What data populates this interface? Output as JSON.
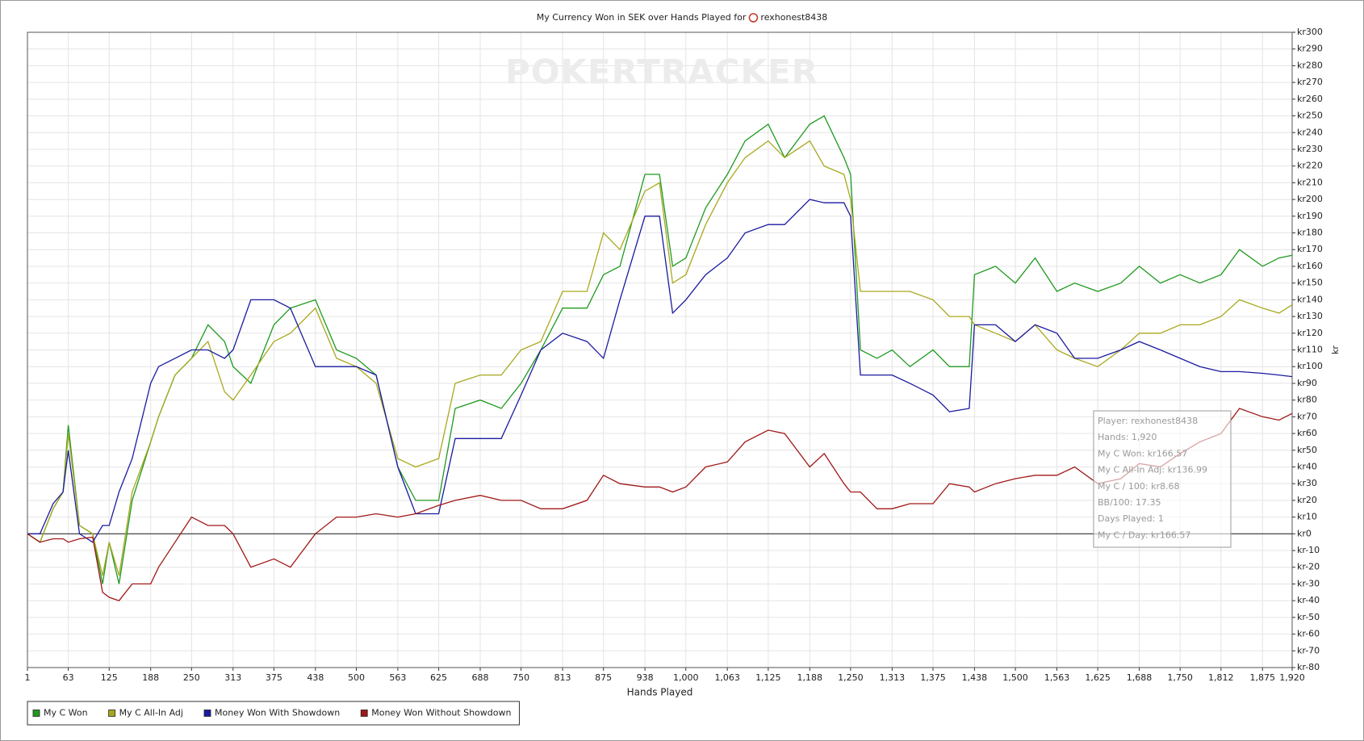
{
  "chart_data": {
    "type": "line",
    "title": "My Currency Won in SEK over Hands Played for",
    "player": "rexhonest8438",
    "watermark": "POKERTRACKER",
    "x_label": "Hands Played",
    "y_label": "kr",
    "xlim": [
      1,
      1920
    ],
    "ylim": [
      -80,
      300
    ],
    "grid": true,
    "legend": "bottom-left",
    "xticks": [
      1,
      63,
      125,
      188,
      250,
      313,
      375,
      438,
      500,
      563,
      625,
      688,
      750,
      813,
      875,
      938,
      {
        "value": 1000,
        "label": "1,000"
      },
      {
        "value": 1063,
        "label": "1,063"
      },
      {
        "value": 1125,
        "label": "1,125"
      },
      {
        "value": 1188,
        "label": "1,188"
      },
      {
        "value": 1250,
        "label": "1,250"
      },
      {
        "value": 1313,
        "label": "1,313"
      },
      {
        "value": 1375,
        "label": "1,375"
      },
      {
        "value": 1438,
        "label": "1,438"
      },
      {
        "value": 1500,
        "label": "1,500"
      },
      {
        "value": 1563,
        "label": "1,563"
      },
      {
        "value": 1625,
        "label": "1,625"
      },
      {
        "value": 1688,
        "label": "1,688"
      },
      {
        "value": 1750,
        "label": "1,750"
      },
      {
        "value": 1812,
        "label": "1,812"
      },
      {
        "value": 1875,
        "label": "1,875"
      },
      {
        "value": 1920,
        "label": "1,920"
      }
    ],
    "yticks": [
      {
        "value": 300,
        "label": "kr300"
      },
      {
        "value": 290,
        "label": "kr290"
      },
      {
        "value": 280,
        "label": "kr280"
      },
      {
        "value": 270,
        "label": "kr270"
      },
      {
        "value": 260,
        "label": "kr260"
      },
      {
        "value": 250,
        "label": "kr250"
      },
      {
        "value": 240,
        "label": "kr240"
      },
      {
        "value": 230,
        "label": "kr230"
      },
      {
        "value": 220,
        "label": "kr220"
      },
      {
        "value": 210,
        "label": "kr210"
      },
      {
        "value": 200,
        "label": "kr200"
      },
      {
        "value": 190,
        "label": "kr190"
      },
      {
        "value": 180,
        "label": "kr180"
      },
      {
        "value": 170,
        "label": "kr170"
      },
      {
        "value": 160,
        "label": "kr160"
      },
      {
        "value": 150,
        "label": "kr150"
      },
      {
        "value": 140,
        "label": "kr140"
      },
      {
        "value": 130,
        "label": "kr130"
      },
      {
        "value": 120,
        "label": "kr120"
      },
      {
        "value": 110,
        "label": "kr110"
      },
      {
        "value": 100,
        "label": "kr100"
      },
      {
        "value": 90,
        "label": "kr90"
      },
      {
        "value": 80,
        "label": "kr80"
      },
      {
        "value": 70,
        "label": "kr70"
      },
      {
        "value": 60,
        "label": "kr60"
      },
      {
        "value": 50,
        "label": "kr50"
      },
      {
        "value": 40,
        "label": "kr40"
      },
      {
        "value": 30,
        "label": "kr30"
      },
      {
        "value": 20,
        "label": "kr20"
      },
      {
        "value": 10,
        "label": "kr10"
      },
      {
        "value": 0,
        "label": "kr0"
      },
      {
        "value": -10,
        "label": "kr-10"
      },
      {
        "value": -20,
        "label": "kr-20"
      },
      {
        "value": -30,
        "label": "kr-30"
      },
      {
        "value": -40,
        "label": "kr-40"
      },
      {
        "value": -50,
        "label": "kr-50"
      },
      {
        "value": -60,
        "label": "kr-60"
      },
      {
        "value": -70,
        "label": "kr-70"
      },
      {
        "value": -80,
        "label": "kr-80"
      }
    ],
    "x": [
      1,
      20,
      40,
      55,
      63,
      80,
      100,
      115,
      125,
      140,
      160,
      188,
      200,
      225,
      250,
      275,
      300,
      313,
      340,
      375,
      400,
      438,
      470,
      500,
      530,
      563,
      590,
      625,
      650,
      688,
      720,
      750,
      780,
      813,
      850,
      875,
      900,
      938,
      960,
      980,
      1000,
      1030,
      1063,
      1090,
      1125,
      1150,
      1188,
      1210,
      1240,
      1250,
      1265,
      1290,
      1313,
      1340,
      1375,
      1400,
      1430,
      1438,
      1470,
      1500,
      1530,
      1563,
      1590,
      1625,
      1660,
      1688,
      1720,
      1750,
      1780,
      1812,
      1840,
      1875,
      1900,
      1920
    ],
    "series": [
      {
        "name": "My C Won",
        "color": "#1f9a1f",
        "values": [
          0,
          -5,
          15,
          25,
          65,
          5,
          0,
          -30,
          -5,
          -30,
          20,
          55,
          70,
          95,
          105,
          125,
          115,
          100,
          90,
          125,
          135,
          140,
          110,
          105,
          95,
          40,
          20,
          20,
          75,
          80,
          75,
          90,
          110,
          135,
          135,
          155,
          160,
          215,
          215,
          160,
          165,
          195,
          215,
          235,
          245,
          225,
          245,
          250,
          225,
          215,
          110,
          105,
          110,
          100,
          110,
          100,
          100,
          155,
          160,
          150,
          165,
          145,
          150,
          145,
          150,
          160,
          150,
          155,
          150,
          155,
          170,
          160,
          165,
          166.57
        ]
      },
      {
        "name": "My C All-In Adj",
        "color": "#a8a81e",
        "values": [
          0,
          -5,
          15,
          25,
          60,
          5,
          0,
          -25,
          -5,
          -25,
          25,
          55,
          70,
          95,
          105,
          115,
          85,
          80,
          95,
          115,
          120,
          135,
          105,
          100,
          90,
          45,
          40,
          45,
          90,
          95,
          95,
          110,
          115,
          145,
          145,
          180,
          170,
          205,
          210,
          150,
          155,
          185,
          210,
          225,
          235,
          225,
          235,
          220,
          215,
          200,
          145,
          145,
          145,
          145,
          140,
          130,
          130,
          125,
          120,
          115,
          125,
          110,
          105,
          100,
          110,
          120,
          120,
          125,
          125,
          130,
          140,
          135,
          132,
          136.99
        ]
      },
      {
        "name": "Money Won With Showdown",
        "color": "#1a1aa0",
        "values": [
          0,
          0,
          18,
          25,
          50,
          0,
          -5,
          5,
          5,
          25,
          45,
          90,
          100,
          105,
          110,
          110,
          105,
          110,
          140,
          140,
          135,
          100,
          100,
          100,
          95,
          40,
          12,
          12,
          57,
          57,
          57,
          83,
          110,
          120,
          115,
          105,
          140,
          190,
          190,
          132,
          140,
          155,
          165,
          180,
          185,
          185,
          200,
          198,
          198,
          190,
          95,
          95,
          95,
          90,
          83,
          73,
          75,
          125,
          125,
          115,
          125,
          120,
          105,
          105,
          110,
          115,
          110,
          105,
          100,
          97,
          97,
          96,
          95,
          94
        ]
      },
      {
        "name": "Money Won Without Showdown",
        "color": "#a01818",
        "values": [
          0,
          -5,
          -3,
          -3,
          -5,
          -3,
          -2,
          -35,
          -38,
          -40,
          -30,
          -30,
          -20,
          -5,
          10,
          5,
          5,
          0,
          -20,
          -15,
          -20,
          0,
          10,
          10,
          12,
          10,
          12,
          17,
          20,
          23,
          20,
          20,
          15,
          15,
          20,
          35,
          30,
          28,
          28,
          25,
          28,
          40,
          43,
          55,
          62,
          60,
          40,
          48,
          30,
          25,
          25,
          15,
          15,
          18,
          18,
          30,
          28,
          25,
          30,
          33,
          35,
          35,
          40,
          30,
          33,
          42,
          40,
          48,
          55,
          60,
          75,
          70,
          68,
          72
        ]
      }
    ],
    "tooltip": [
      "Player: rexhonest8438",
      "Hands: 1,920",
      "My C Won: kr166.57",
      "My C All-In Adj: kr136.99",
      "My C / 100: kr8.68",
      "BB/100: 17.35",
      "Days Played: 1",
      "My C / Day: kr166.57"
    ]
  }
}
